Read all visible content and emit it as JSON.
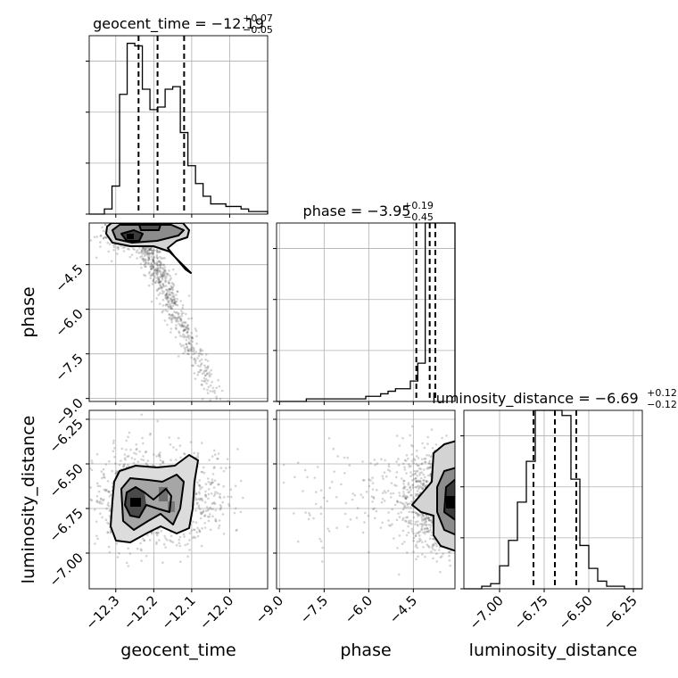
{
  "chart_data": {
    "type": "corner",
    "parameters": [
      {
        "name": "geocent_time",
        "label": "geocent_time",
        "range": [
          -12.37,
          -11.9
        ],
        "ticks": [
          -12.3,
          -12.2,
          -12.1,
          -12.0
        ],
        "tick_labels": [
          "−12.3",
          "−12.2",
          "−12.1",
          "−12.0"
        ]
      },
      {
        "name": "phase",
        "label": "phase",
        "range": [
          -9.1,
          -3.1
        ],
        "ticks": [
          -9.0,
          -7.5,
          -6.0,
          -4.5
        ],
        "tick_labels": [
          "−9.0",
          "−7.5",
          "−6.0",
          "−4.5"
        ]
      },
      {
        "name": "luminosity_distance",
        "label": "luminosity_distance",
        "range": [
          -7.2,
          -6.2
        ],
        "ticks": [
          -7.0,
          -6.75,
          -6.5,
          -6.25
        ],
        "tick_labels": [
          "−7.00",
          "−6.75",
          "−6.50",
          "−6.25"
        ]
      }
    ],
    "titles": [
      {
        "text": "geocent_time = −12.19",
        "sup": "+0.07",
        "sub": "−0.05"
      },
      {
        "text": "phase = −3.95",
        "sup": "+0.19",
        "sub": "−0.45"
      },
      {
        "text": "luminosity_distance = −6.69",
        "sup": "+0.12",
        "sub": "−0.12"
      }
    ],
    "histograms": [
      {
        "bin_edges": [
          -12.37,
          -12.35,
          -12.33,
          -12.31,
          -12.29,
          -12.27,
          -12.25,
          -12.23,
          -12.21,
          -12.19,
          -12.17,
          -12.15,
          -12.13,
          -12.11,
          -12.09,
          -12.07,
          -12.05,
          -12.03,
          -12.01,
          -11.99,
          -11.97,
          -11.95,
          -11.93,
          -11.9
        ],
        "counts": [
          0,
          0,
          2,
          11,
          47,
          67,
          66,
          49,
          41,
          42,
          49,
          50,
          32,
          19,
          12,
          7,
          4,
          4,
          3,
          3,
          2,
          1,
          1
        ],
        "quantiles": [
          -12.24,
          -12.19,
          -12.12
        ]
      },
      {
        "bin_edges": [
          -9.1,
          -8.85,
          -8.6,
          -8.35,
          -8.1,
          -7.85,
          -7.6,
          -7.35,
          -7.1,
          -6.85,
          -6.6,
          -6.35,
          -6.1,
          -5.85,
          -5.6,
          -5.35,
          -5.1,
          -4.85,
          -4.6,
          -4.35,
          -4.1,
          -3.85,
          -3.6,
          -3.35,
          -3.1
        ],
        "counts": [
          0,
          0,
          0,
          0,
          1,
          1,
          1,
          1,
          1,
          1,
          1,
          1,
          2,
          2,
          3,
          4,
          5,
          5,
          8,
          15,
          91,
          124,
          175,
          180
        ],
        "quantiles": [
          -4.4,
          -3.95,
          -3.76
        ]
      },
      {
        "bin_edges": [
          -7.2,
          -7.15,
          -7.1,
          -7.05,
          -7.0,
          -6.95,
          -6.9,
          -6.85,
          -6.8,
          -6.75,
          -6.7,
          -6.65,
          -6.6,
          -6.55,
          -6.5,
          -6.45,
          -6.4,
          -6.35,
          -6.3,
          -6.25,
          -6.2
        ],
        "counts": [
          0,
          0,
          1,
          2,
          9,
          19,
          34,
          50,
          71,
          82,
          78,
          68,
          43,
          17,
          8,
          3,
          1,
          1,
          0,
          0
        ],
        "quantiles": [
          -6.81,
          -6.69,
          -6.57
        ]
      }
    ],
    "hist_ylim": [
      0,
      70
    ],
    "hist_yticks": [
      0,
      20,
      40,
      60
    ],
    "grid": true
  }
}
